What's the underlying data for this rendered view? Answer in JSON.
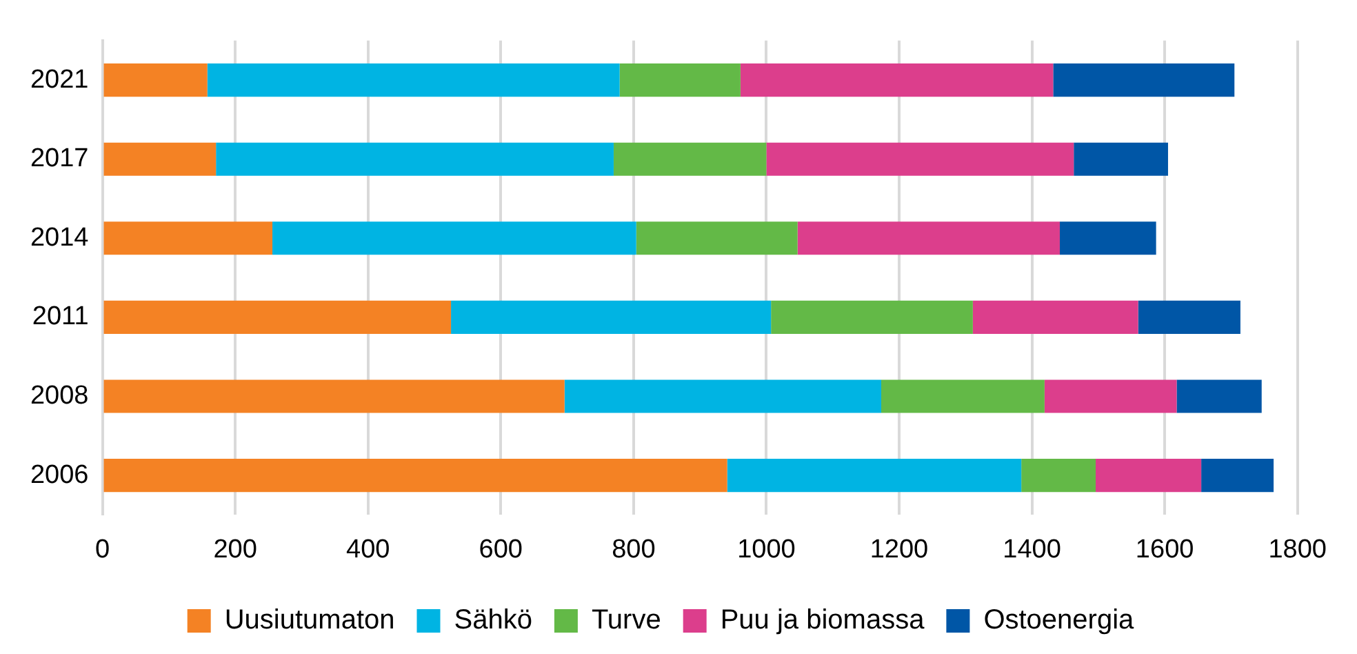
{
  "chart_data": {
    "type": "bar",
    "orientation": "horizontal",
    "stacked": true,
    "categories": [
      "2021",
      "2017",
      "2014",
      "2011",
      "2008",
      "2006"
    ],
    "series": [
      {
        "name": "Uusiutumaton",
        "color": "#f48224",
        "values": [
          158,
          171,
          256,
          525,
          696,
          941
        ]
      },
      {
        "name": "Sähkö",
        "color": "#00b4e3",
        "values": [
          621,
          599,
          548,
          482,
          477,
          443
        ]
      },
      {
        "name": "Turve",
        "color": "#63b947",
        "values": [
          182,
          230,
          243,
          304,
          246,
          112
        ]
      },
      {
        "name": "Puu ja biomassa",
        "color": "#dc3e8c",
        "values": [
          471,
          463,
          395,
          249,
          199,
          159
        ]
      },
      {
        "name": "Ostoenergia",
        "color": "#0056a6",
        "values": [
          273,
          142,
          145,
          154,
          128,
          109
        ]
      }
    ],
    "xlim": [
      0,
      1800
    ],
    "xticks": [
      0,
      200,
      400,
      600,
      800,
      1000,
      1200,
      1400,
      1600,
      1800
    ],
    "grid": "x",
    "legend": "bottom"
  }
}
